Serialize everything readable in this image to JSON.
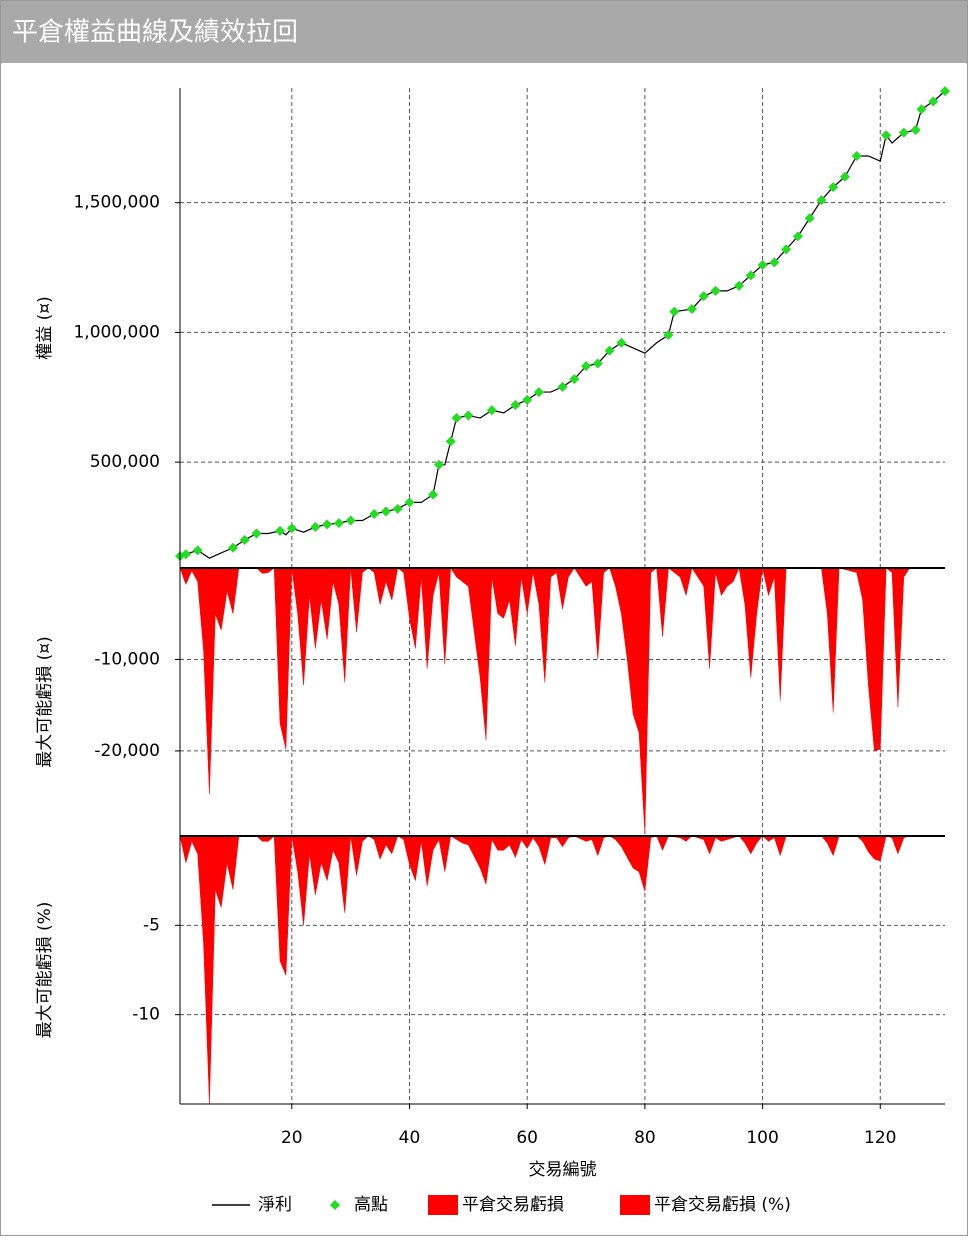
{
  "title": "平倉權益曲線及績效拉回",
  "chart_data": [
    {
      "type": "line",
      "ylabel": "權益 (¤)",
      "x": [
        1,
        2,
        4,
        6,
        8,
        10,
        12,
        14,
        16,
        18,
        19,
        20,
        22,
        24,
        26,
        28,
        30,
        32,
        34,
        36,
        38,
        40,
        42,
        44,
        45,
        46,
        47,
        48,
        50,
        52,
        54,
        56,
        58,
        60,
        62,
        64,
        66,
        68,
        70,
        72,
        74,
        76,
        78,
        80,
        82,
        84,
        85,
        88,
        90,
        92,
        94,
        96,
        98,
        100,
        102,
        104,
        106,
        108,
        110,
        112,
        114,
        116,
        118,
        120,
        121,
        122,
        124,
        126,
        127,
        129,
        131
      ],
      "series": [
        {
          "name": "淨利",
          "type": "line",
          "color": "#000000",
          "values": [
            138000,
            145000,
            160000,
            130000,
            150000,
            170000,
            200000,
            225000,
            225000,
            235000,
            220000,
            245000,
            230000,
            250000,
            260000,
            265000,
            275000,
            275000,
            300000,
            310000,
            320000,
            345000,
            345000,
            375000,
            490000,
            490000,
            580000,
            670000,
            680000,
            670000,
            700000,
            690000,
            720000,
            740000,
            770000,
            770000,
            790000,
            820000,
            870000,
            880000,
            930000,
            960000,
            940000,
            920000,
            960000,
            990000,
            1080000,
            1090000,
            1140000,
            1160000,
            1160000,
            1180000,
            1220000,
            1260000,
            1270000,
            1320000,
            1370000,
            1440000,
            1510000,
            1560000,
            1600000,
            1680000,
            1680000,
            1660000,
            1760000,
            1730000,
            1770000,
            1780000,
            1860000,
            1890000,
            1930000
          ]
        },
        {
          "name": "高點",
          "type": "scatter",
          "color": "#22dd22",
          "values": [
            138000,
            145000,
            160000,
            null,
            null,
            170000,
            200000,
            225000,
            null,
            235000,
            null,
            245000,
            null,
            250000,
            260000,
            265000,
            275000,
            null,
            300000,
            310000,
            320000,
            345000,
            null,
            375000,
            490000,
            null,
            580000,
            670000,
            680000,
            null,
            700000,
            null,
            720000,
            740000,
            770000,
            null,
            790000,
            820000,
            870000,
            880000,
            930000,
            960000,
            null,
            null,
            null,
            990000,
            1080000,
            1090000,
            1140000,
            1160000,
            null,
            1180000,
            1220000,
            1260000,
            1270000,
            1320000,
            1370000,
            1440000,
            1510000,
            1560000,
            1600000,
            1680000,
            null,
            null,
            1760000,
            null,
            1770000,
            1780000,
            1860000,
            1890000,
            1930000
          ]
        }
      ],
      "xlim": [
        1,
        131
      ],
      "ylim": [
        92000,
        1942000
      ],
      "yticks": [
        {
          "value": 500000,
          "label": "500,000"
        },
        {
          "value": 1000000,
          "label": "1,000,000"
        },
        {
          "value": 1500000,
          "label": "1,500,000"
        }
      ],
      "grid": true
    },
    {
      "type": "area",
      "ylabel": "最大可能虧損 (¤)",
      "x": [
        1,
        2,
        3,
        4,
        5,
        6,
        7,
        8,
        9,
        10,
        11,
        14,
        15,
        16,
        17,
        18,
        19,
        20,
        21,
        22,
        23,
        24,
        25,
        26,
        27,
        28,
        29,
        30,
        31,
        32,
        33,
        34,
        35,
        36,
        37,
        38,
        39,
        40,
        41,
        42,
        43,
        44,
        45,
        46,
        47,
        48,
        49,
        50,
        52,
        53,
        54,
        55,
        56,
        57,
        58,
        59,
        60,
        61,
        62,
        63,
        64,
        65,
        66,
        67,
        68,
        70,
        71,
        72,
        73,
        74,
        75,
        76,
        77,
        78,
        79,
        80,
        81,
        82,
        83,
        84,
        86,
        87,
        88,
        90,
        91,
        92,
        93,
        94,
        95,
        96,
        97,
        98,
        99,
        100,
        101,
        102,
        103,
        104,
        110,
        111,
        112,
        113,
        116,
        117,
        118,
        119,
        120,
        121,
        122,
        123,
        124,
        125,
        131
      ],
      "series": [
        {
          "name": "平倉交易虧損",
          "color": "#ff0000",
          "values": [
            0,
            -1800,
            -300,
            -1500,
            -9000,
            -24700,
            -5000,
            -6800,
            -2500,
            -5000,
            0,
            0,
            -600,
            -500,
            0,
            -17000,
            -19800,
            0,
            -5000,
            -12800,
            -3000,
            -8800,
            -3500,
            -7800,
            -1500,
            -4000,
            -12500,
            0,
            -7000,
            -500,
            0,
            -500,
            -4000,
            -1500,
            -3500,
            0,
            -500,
            -5500,
            -8800,
            -1000,
            -11000,
            -3000,
            -500,
            -10500,
            0,
            -1000,
            -1500,
            -2000,
            -12000,
            -18800,
            -1000,
            -5000,
            -5500,
            -3500,
            -8500,
            -1000,
            -5000,
            -500,
            -4000,
            -12500,
            -1000,
            -500,
            -4500,
            -1000,
            0,
            -2000,
            -1500,
            -10000,
            -500,
            0,
            -2000,
            -5000,
            -10000,
            -16000,
            -18000,
            -29000,
            -500,
            0,
            -7500,
            0,
            -1000,
            -3000,
            0,
            -2000,
            -11000,
            -500,
            -3000,
            -2000,
            -1500,
            0,
            -4000,
            -12000,
            -5000,
            0,
            -3000,
            -1000,
            -14500,
            0,
            0,
            -5000,
            -15800,
            0,
            -500,
            -3500,
            -13000,
            -20000,
            -19800,
            0,
            -500,
            -15200,
            -1000,
            0,
            0
          ]
        }
      ],
      "xlim": [
        1,
        131
      ],
      "ylim": [
        -29300,
        0
      ],
      "yticks": [
        {
          "value": -10000,
          "label": "-10,000"
        },
        {
          "value": -20000,
          "label": "-20,000"
        }
      ],
      "grid": true
    },
    {
      "type": "area",
      "ylabel": "最大可能虧損 (%)",
      "xlabel": "交易編號",
      "x": [
        1,
        2,
        3,
        4,
        5,
        6,
        7,
        8,
        9,
        10,
        11,
        14,
        15,
        16,
        17,
        18,
        19,
        20,
        21,
        22,
        23,
        24,
        25,
        26,
        27,
        28,
        29,
        30,
        31,
        32,
        33,
        34,
        35,
        36,
        37,
        38,
        39,
        40,
        41,
        42,
        43,
        44,
        45,
        46,
        47,
        48,
        49,
        50,
        52,
        53,
        54,
        55,
        56,
        57,
        58,
        59,
        60,
        61,
        62,
        63,
        64,
        65,
        66,
        67,
        68,
        70,
        71,
        72,
        73,
        74,
        75,
        76,
        77,
        78,
        79,
        80,
        81,
        82,
        83,
        84,
        86,
        87,
        88,
        90,
        91,
        92,
        93,
        94,
        95,
        96,
        97,
        98,
        99,
        100,
        101,
        102,
        103,
        104,
        110,
        111,
        112,
        113,
        116,
        117,
        118,
        119,
        120,
        121,
        122,
        123,
        124,
        125,
        131
      ],
      "series": [
        {
          "name": "平倉交易虧損 (%)",
          "color": "#ff0000",
          "values": [
            0,
            -1.5,
            -0.3,
            -1,
            -6,
            -15,
            -3,
            -4,
            -1.5,
            -3,
            0,
            0,
            -0.3,
            -0.3,
            0,
            -7,
            -7.8,
            0,
            -2,
            -5,
            -1,
            -3.3,
            -1.5,
            -2.5,
            -0.8,
            -1.5,
            -4.3,
            0,
            -2.2,
            -0.3,
            0,
            -0.2,
            -1.3,
            -0.5,
            -1,
            0,
            -0.2,
            -1.6,
            -2.5,
            -0.3,
            -2.8,
            -0.8,
            -0.2,
            -2,
            0,
            -0.2,
            -0.4,
            -0.5,
            -1.8,
            -2.7,
            -0.2,
            -0.8,
            -0.8,
            -0.5,
            -1.2,
            -0.2,
            -0.7,
            -0.1,
            -0.6,
            -1.6,
            -0.1,
            -0.1,
            -0.6,
            -0.1,
            0,
            -0.3,
            -0.2,
            -1.1,
            -0.1,
            0,
            -0.2,
            -0.6,
            -1.2,
            -1.8,
            -2,
            -3.1,
            -0.1,
            0,
            -0.8,
            0,
            -0.1,
            -0.3,
            0,
            -0.2,
            -1,
            -0.1,
            -0.3,
            -0.2,
            -0.1,
            0,
            -0.4,
            -1,
            -0.4,
            0,
            -0.3,
            -0.1,
            -1.1,
            0,
            0,
            -0.4,
            -1.1,
            0,
            0,
            -0.3,
            -0.9,
            -1.3,
            -1.4,
            0,
            -0.1,
            -1,
            -0.1,
            0,
            0
          ]
        }
      ],
      "xlim": [
        1,
        131
      ],
      "ylim": [
        -15,
        0
      ],
      "xticks": [
        20,
        40,
        60,
        80,
        100,
        120
      ],
      "yticks": [
        -5,
        -10
      ],
      "grid": true
    }
  ]
}
